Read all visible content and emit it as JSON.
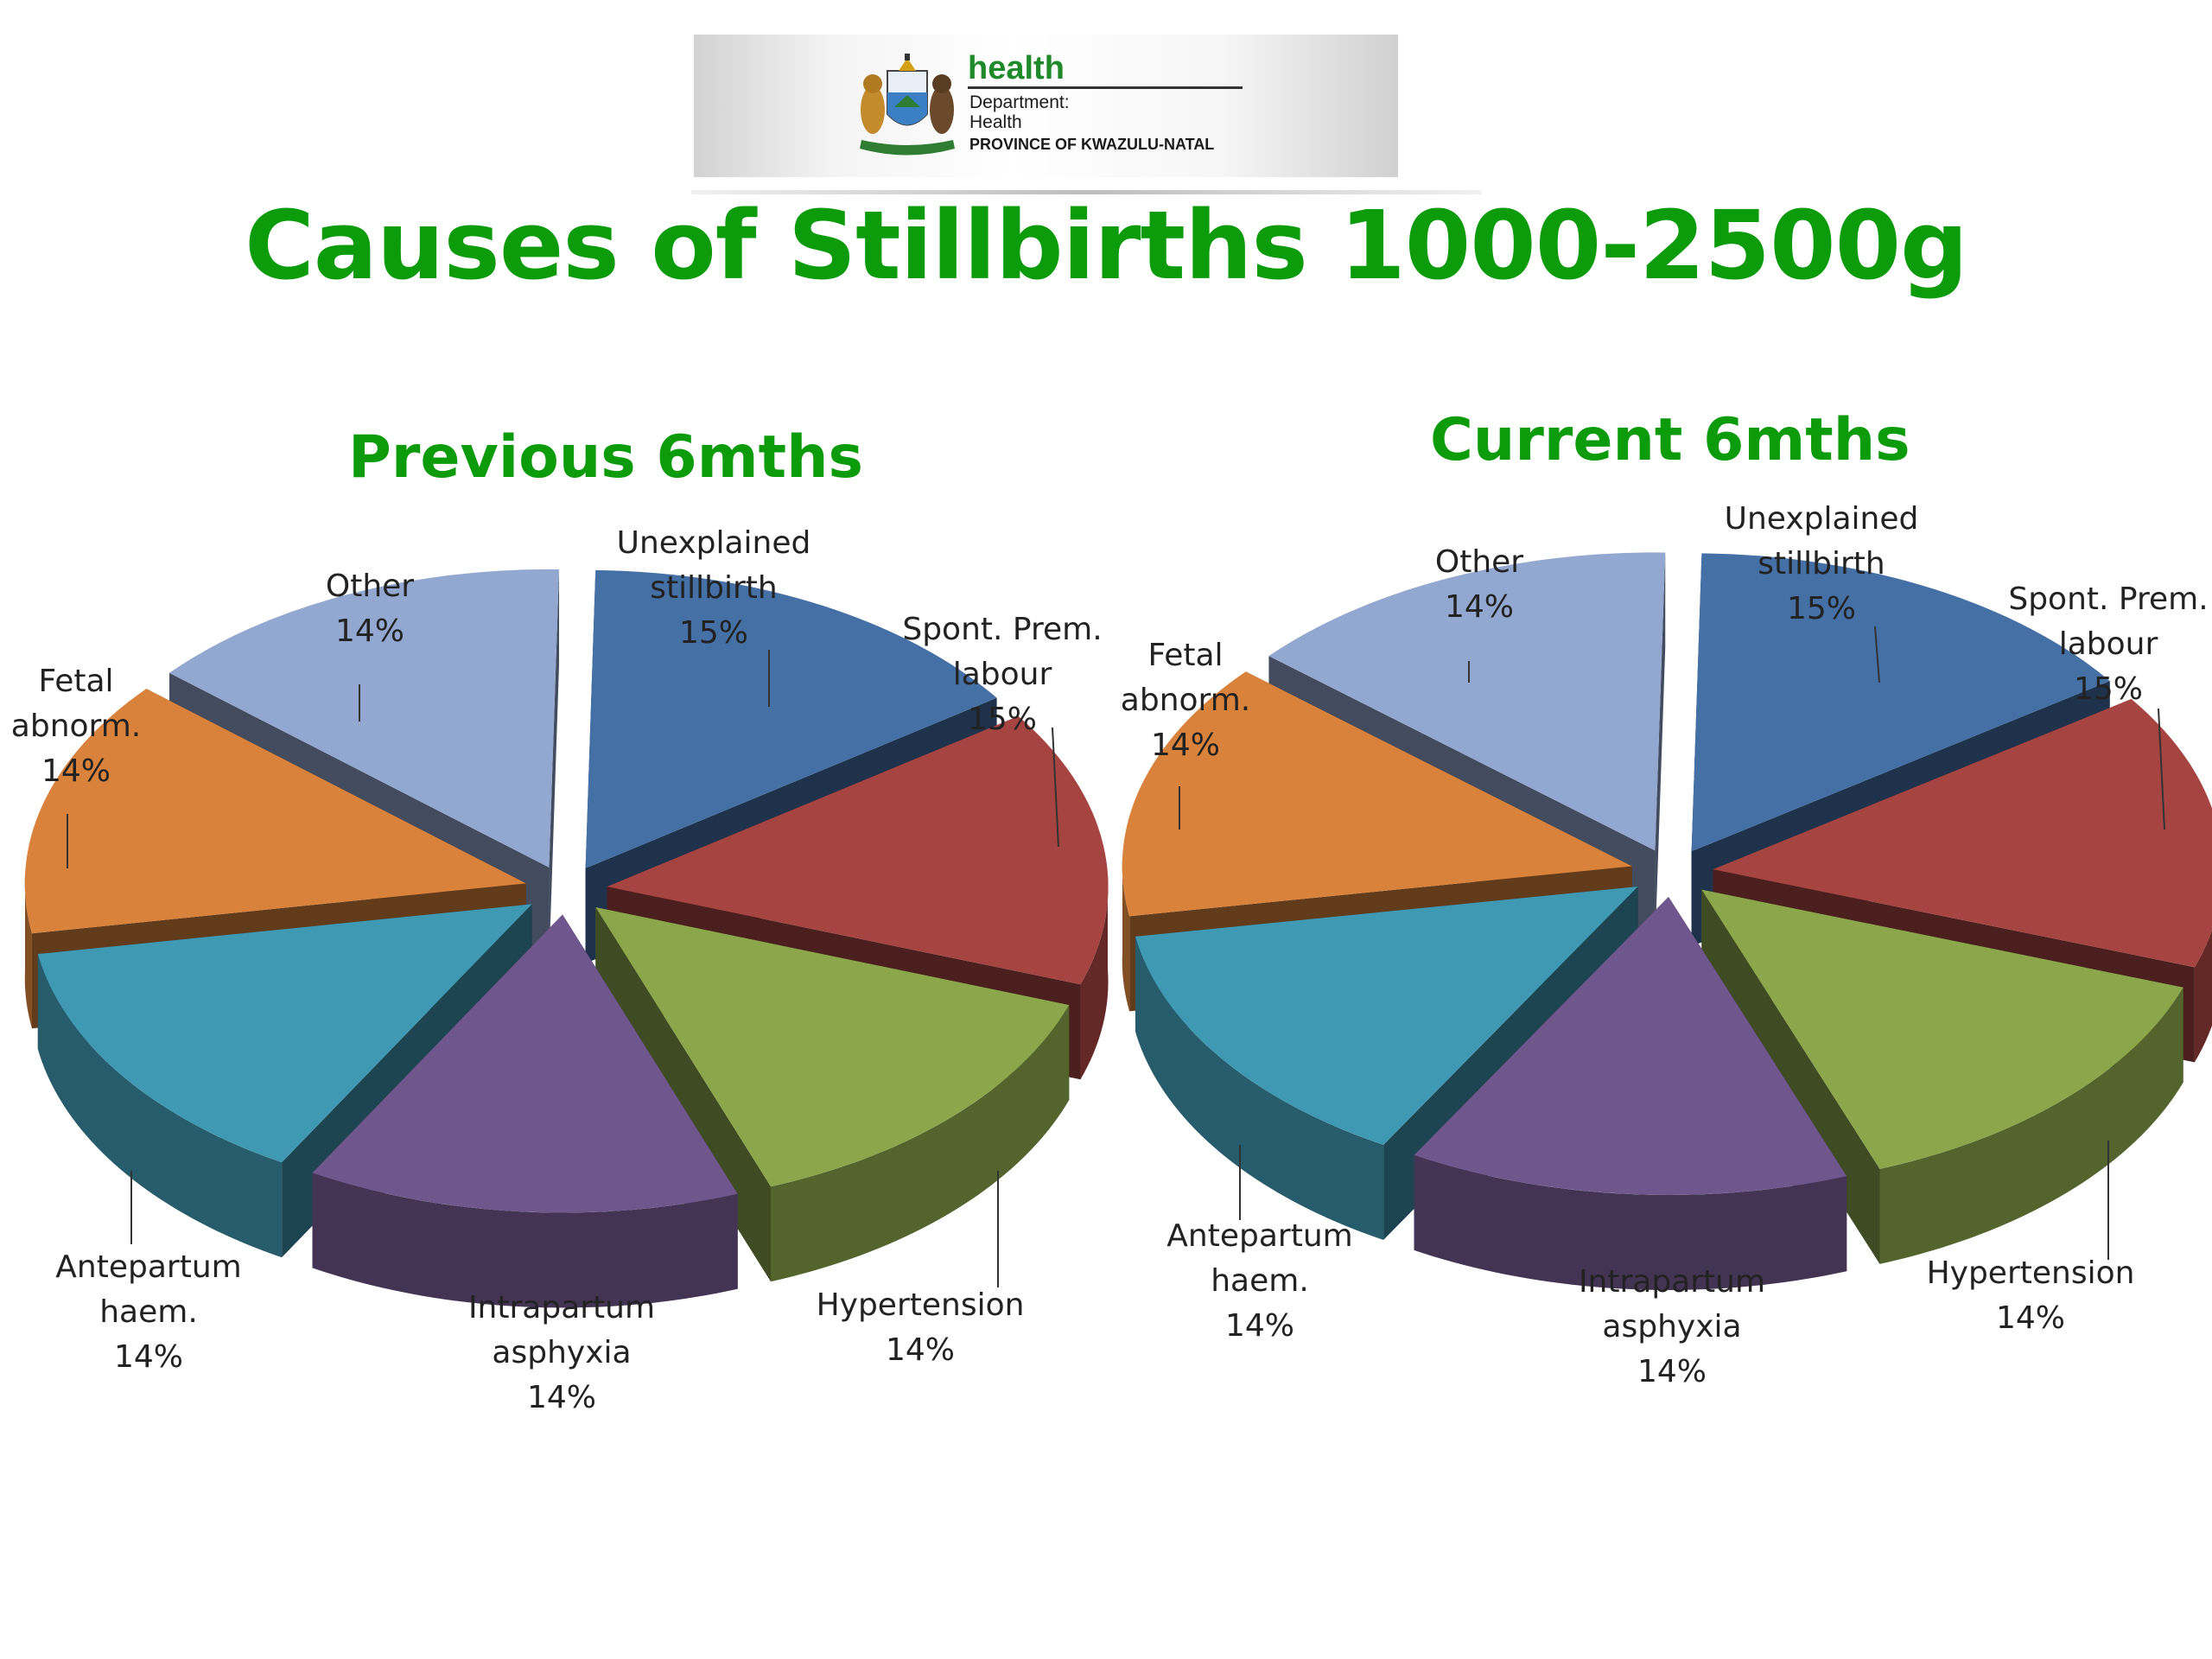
{
  "header": {
    "logo_word": "health",
    "logo_line1": "Department:",
    "logo_line2": "Health",
    "logo_line3": "PROVINCE OF KWAZULU-NATAL"
  },
  "title": "Causes of Stillbirths 1000-2500g",
  "colors": {
    "title": "#0b9b0b",
    "unexplained": "#4470a6",
    "spont_prem": "#a64441",
    "hypertension": "#8ba64b",
    "intrapartum": "#6f568c",
    "antepartum": "#4099b3",
    "fetal": "#d9823b",
    "other": "#93a8d1"
  },
  "chart_data": [
    {
      "type": "pie",
      "title": "Previous 6mths",
      "categories": [
        "Unexplained stillbirth",
        "Spont. Prem. labour",
        "Hypertension",
        "Intrapartum asphyxia",
        "Antepartum haem.",
        "Fetal abnorm.",
        "Other"
      ],
      "values": [
        15,
        15,
        14,
        14,
        14,
        14,
        14
      ],
      "labels": [
        [
          "Unexplained",
          "stillbirth",
          "15%"
        ],
        [
          "Spont. Prem.",
          "labour",
          "15%"
        ],
        [
          "Hypertension",
          "14%"
        ],
        [
          "Intrapartum",
          "asphyxia",
          "14%"
        ],
        [
          "Antepartum",
          "haem.",
          "14%"
        ],
        [
          "Fetal",
          "abnorm.",
          "14%"
        ],
        [
          "Other",
          "14%"
        ]
      ]
    },
    {
      "type": "pie",
      "title": "Current 6mths",
      "categories": [
        "Unexplained stillbirth",
        "Spont. Prem. labour",
        "Hypertension",
        "Intrapartum asphyxia",
        "Antepartum haem.",
        "Fetal abnorm.",
        "Other"
      ],
      "values": [
        15,
        15,
        14,
        14,
        14,
        14,
        14
      ],
      "labels": [
        [
          "Unexplained",
          "stillbirth",
          "15%"
        ],
        [
          "Spont. Prem.",
          "labour",
          "15%"
        ],
        [
          "Hypertension",
          "14%"
        ],
        [
          "Intrapartum",
          "asphyxia",
          "14%"
        ],
        [
          "Antepartum",
          "haem.",
          "14%"
        ],
        [
          "Fetal",
          "abnorm.",
          "14%"
        ],
        [
          "Other",
          "14%"
        ]
      ]
    }
  ]
}
